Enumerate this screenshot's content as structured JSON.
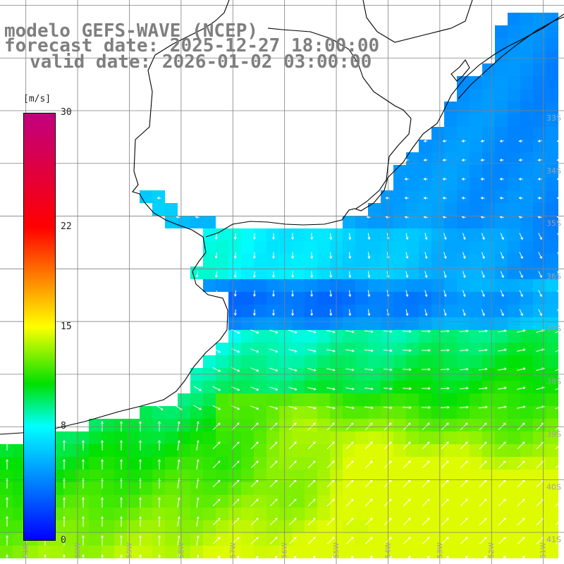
{
  "header": {
    "model": "modelo GEFS-WAVE (NCEP)",
    "forecast": "forecast date: 2025-12-27 18:00:00",
    "valid": "valid date: 2026-01-02 03:00:00"
  },
  "colorbar": {
    "unit": "[m/s]",
    "ticks": [
      {
        "value": 30,
        "label": "30"
      },
      {
        "value": 22,
        "label": "22"
      },
      {
        "value": 15,
        "label": "15"
      },
      {
        "value": 8,
        "label": "8"
      },
      {
        "value": 0,
        "label": "0"
      }
    ],
    "stops": [
      {
        "value": 0,
        "color": "#0000ff"
      },
      {
        "value": 8,
        "color": "#00ffff"
      },
      {
        "value": 11,
        "color": "#00e000"
      },
      {
        "value": 15,
        "color": "#ffff00"
      },
      {
        "value": 22,
        "color": "#ff0000"
      },
      {
        "value": 30,
        "color": "#c0007f"
      }
    ]
  },
  "map": {
    "lon_range": [
      -61.5,
      -50.6
    ],
    "lat_range": [
      -41.6,
      -30.9
    ],
    "grid_step_deg": 1,
    "lon_labels": [
      {
        "lon": -61,
        "label": "61W"
      },
      {
        "lon": -60,
        "label": "60W"
      },
      {
        "lon": -59,
        "label": "59W"
      },
      {
        "lon": -58,
        "label": "58W"
      },
      {
        "lon": -57,
        "label": "57W"
      },
      {
        "lon": -56,
        "label": "56W"
      },
      {
        "lon": -55,
        "label": "55W"
      },
      {
        "lon": -54,
        "label": "54W"
      },
      {
        "lon": -53,
        "label": "53W"
      },
      {
        "lon": -52,
        "label": "52W"
      },
      {
        "lon": -51,
        "label": "51W"
      }
    ],
    "lat_labels": [
      {
        "lat": -33,
        "label": "33S"
      },
      {
        "lat": -34,
        "label": "34S"
      },
      {
        "lat": -35,
        "label": "35S"
      },
      {
        "lat": -36,
        "label": "36S"
      },
      {
        "lat": -37,
        "label": "37S"
      },
      {
        "lat": -38,
        "label": "38S"
      },
      {
        "lat": -39,
        "label": "39S"
      },
      {
        "lat": -40,
        "label": "40S"
      },
      {
        "lat": -41,
        "label": "41S"
      }
    ],
    "colors": {
      "grid": "#808080",
      "coast": "#000000",
      "arrow": "#ffffff",
      "label": "#a0a0a0"
    }
  }
}
